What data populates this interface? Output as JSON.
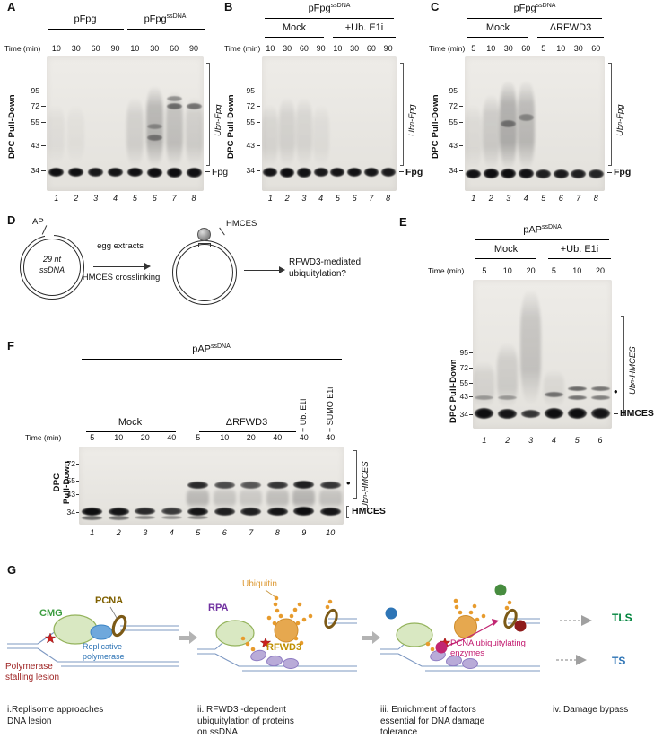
{
  "panelA": {
    "label": "A",
    "group1": {
      "base": "pFpg",
      "sup": ""
    },
    "group2": {
      "base": "pFpg",
      "sup": "ssDNA"
    },
    "time_label": "Time (min)",
    "times": [
      "10",
      "30",
      "60",
      "90",
      "10",
      "30",
      "60",
      "90"
    ],
    "pulldown": "DPC Pull-Down",
    "mw": [
      "95",
      "72",
      "55",
      "43",
      "34"
    ],
    "ub": {
      "pre": "Ub",
      "sub": "n",
      "post": "-Fpg"
    },
    "band": "Fpg",
    "lane_numbers": [
      "1",
      "2",
      "3",
      "4",
      "5",
      "6",
      "7",
      "8"
    ],
    "gel": {
      "bandW": 15,
      "lanes": [
        {
          "b": [
            [
              0.86,
              10,
              0.97
            ]
          ],
          "s": [
            0.35,
            0.8,
            0.05
          ]
        },
        {
          "b": [
            [
              0.86,
              10,
              0.97
            ]
          ],
          "s": [
            0.35,
            0.8,
            0.04
          ]
        },
        {
          "b": [
            [
              0.86,
              10,
              0.93
            ]
          ]
        },
        {
          "b": [
            [
              0.86,
              10,
              0.95
            ]
          ]
        },
        {
          "b": [
            [
              0.86,
              10,
              0.97
            ]
          ],
          "s": [
            0.3,
            0.82,
            0.13
          ]
        },
        {
          "b": [
            [
              0.86,
              11,
              0.98
            ],
            [
              0.6,
              7,
              0.4
            ],
            [
              0.52,
              6,
              0.3
            ]
          ],
          "s": [
            0.22,
            0.82,
            0.28
          ]
        },
        {
          "b": [
            [
              0.86,
              11,
              0.98
            ],
            [
              0.37,
              7,
              0.5
            ],
            [
              0.31,
              6,
              0.35
            ]
          ],
          "s": [
            0.26,
            0.82,
            0.22
          ]
        },
        {
          "b": [
            [
              0.86,
              11,
              0.97
            ],
            [
              0.37,
              7,
              0.5
            ]
          ],
          "s": [
            0.3,
            0.82,
            0.14
          ]
        }
      ]
    }
  },
  "panelB": {
    "label": "B",
    "title": {
      "base": "pFpg",
      "sup": "ssDNA"
    },
    "group1": "Mock",
    "group2": "+Ub. E1i",
    "time_label": "Time (min)",
    "times": [
      "10",
      "30",
      "60",
      "90",
      "10",
      "30",
      "60",
      "90"
    ],
    "pulldown": "DPC Pull-Down",
    "mw": [
      "95",
      "72",
      "55",
      "43",
      "34"
    ],
    "ub": {
      "pre": "Ub",
      "sub": "n",
      "post": "-Fpg"
    },
    "band": "Fpg",
    "lane_numbers": [
      "1",
      "2",
      "3",
      "4",
      "5",
      "6",
      "7",
      "8"
    ],
    "gel": {
      "bandW": 14,
      "lanes": [
        {
          "b": [
            [
              0.86,
              10,
              0.95
            ]
          ],
          "s": [
            0.35,
            0.82,
            0.1
          ]
        },
        {
          "b": [
            [
              0.86,
              11,
              0.98
            ]
          ],
          "s": [
            0.3,
            0.82,
            0.12
          ]
        },
        {
          "b": [
            [
              0.86,
              11,
              0.96
            ]
          ],
          "s": [
            0.3,
            0.82,
            0.1
          ]
        },
        {
          "b": [
            [
              0.86,
              10,
              0.93
            ]
          ],
          "s": [
            0.35,
            0.82,
            0.06
          ]
        },
        {
          "b": [
            [
              0.86,
              10,
              0.95
            ]
          ]
        },
        {
          "b": [
            [
              0.86,
              10,
              0.96
            ]
          ]
        },
        {
          "b": [
            [
              0.86,
              10,
              0.94
            ]
          ]
        },
        {
          "b": [
            [
              0.86,
              10,
              0.92
            ]
          ]
        }
      ]
    }
  },
  "panelC": {
    "label": "C",
    "title": {
      "base": "pFpg",
      "sup": "ssDNA"
    },
    "group1": "Mock",
    "group2": "ΔRFWD3",
    "time_label": "Time (min)",
    "times": [
      "5",
      "10",
      "30",
      "60",
      "5",
      "10",
      "30",
      "60"
    ],
    "pulldown": "DPC Pull-Down",
    "mw": [
      "95",
      "72",
      "55",
      "43",
      "34"
    ],
    "ub": {
      "pre": "Ub",
      "sub": "n",
      "post": "-Fpg"
    },
    "band": "Fpg",
    "lane_numbers": [
      "1",
      "2",
      "3",
      "4",
      "5",
      "6",
      "7",
      "8"
    ],
    "gel": {
      "bandW": 15,
      "lanes": [
        {
          "b": [
            [
              0.87,
              10,
              0.96
            ]
          ],
          "s": [
            0.35,
            0.84,
            0.07
          ]
        },
        {
          "b": [
            [
              0.87,
              11,
              0.98
            ]
          ],
          "s": [
            0.28,
            0.84,
            0.16
          ]
        },
        {
          "b": [
            [
              0.87,
              11,
              0.98
            ],
            [
              0.5,
              8,
              0.4
            ]
          ],
          "s": [
            0.18,
            0.84,
            0.32
          ]
        },
        {
          "b": [
            [
              0.87,
              11,
              0.96
            ],
            [
              0.45,
              8,
              0.32
            ]
          ],
          "s": [
            0.18,
            0.84,
            0.26
          ]
        },
        {
          "b": [
            [
              0.87,
              10,
              0.9
            ]
          ]
        },
        {
          "b": [
            [
              0.87,
              10,
              0.92
            ]
          ]
        },
        {
          "b": [
            [
              0.87,
              10,
              0.9
            ]
          ]
        },
        {
          "b": [
            [
              0.87,
              10,
              0.88
            ]
          ]
        }
      ]
    }
  },
  "panelD": {
    "label": "D",
    "ap": "AP",
    "plasmid_text": "29 nt\nssDNA",
    "arrow_top": "egg extracts",
    "arrow_bottom": "HMCES crosslinking",
    "hmces": "HMCES",
    "question": "RFWD3-mediated\nubiquitylation?"
  },
  "panelE": {
    "label": "E",
    "title": {
      "base": "pAP",
      "sup": "ssDNA"
    },
    "group1": "Mock",
    "group2": "+Ub. E1i",
    "time_label": "Time (min)",
    "times": [
      "5",
      "10",
      "20",
      "5",
      "10",
      "20"
    ],
    "pulldown": "DPC Pull-Down",
    "mw": [
      "95",
      "72",
      "55",
      "43",
      "34"
    ],
    "ub": {
      "pre": "Ub",
      "sub": "n",
      "post": "-HMCES"
    },
    "dot": "•",
    "band": "HMCES",
    "lane_numbers": [
      "1",
      "2",
      "3",
      "4",
      "5",
      "6"
    ],
    "gel": {
      "bandW": 19,
      "lanes": [
        {
          "b": [
            [
              0.9,
              12,
              0.98
            ],
            [
              0.79,
              5,
              0.3
            ]
          ],
          "s": [
            0.55,
            0.86,
            0.1
          ]
        },
        {
          "b": [
            [
              0.9,
              11,
              0.95
            ],
            [
              0.79,
              5,
              0.3
            ]
          ],
          "s": [
            0.42,
            0.86,
            0.14
          ]
        },
        {
          "b": [
            [
              0.9,
              9,
              0.8
            ]
          ],
          "s": [
            0.06,
            0.84,
            0.2
          ]
        },
        {
          "b": [
            [
              0.9,
              12,
              0.98
            ],
            [
              0.77,
              6,
              0.5
            ]
          ],
          "s": [
            0.6,
            0.86,
            0.07
          ]
        },
        {
          "b": [
            [
              0.9,
              12,
              0.98
            ],
            [
              0.73,
              5,
              0.55
            ],
            [
              0.79,
              5,
              0.5
            ]
          ]
        },
        {
          "b": [
            [
              0.9,
              12,
              0.95
            ],
            [
              0.73,
              5,
              0.5
            ],
            [
              0.79,
              5,
              0.45
            ]
          ]
        }
      ]
    }
  },
  "panelF": {
    "label": "F",
    "title": {
      "base": "pAP",
      "sup": "ssDNA"
    },
    "group1": "Mock",
    "group2": "ΔRFWD3",
    "rot1": "+ Ub. E1i",
    "rot2": "+ SUMO E1i",
    "time_label": "Time (min)",
    "times": [
      "5",
      "10",
      "20",
      "40",
      "5",
      "10",
      "20",
      "40",
      "40",
      "40"
    ],
    "pulldown": "DPC\nPull-Down",
    "mw": [
      "72",
      "55",
      "43",
      "34"
    ],
    "ub": {
      "pre": "Ub",
      "sub": "n",
      "post": "-HMCES"
    },
    "dot": "•",
    "band": "HMCES",
    "lane_numbers": [
      "1",
      "2",
      "3",
      "4",
      "5",
      "6",
      "7",
      "8",
      "9",
      "10"
    ],
    "gel": {
      "bandW": 21,
      "lanes": [
        {
          "b": [
            [
              0.83,
              9,
              0.98
            ],
            [
              0.91,
              5,
              0.55
            ]
          ]
        },
        {
          "b": [
            [
              0.83,
              9,
              0.95
            ],
            [
              0.91,
              5,
              0.5
            ]
          ]
        },
        {
          "b": [
            [
              0.83,
              8,
              0.85
            ],
            [
              0.91,
              4,
              0.4
            ]
          ]
        },
        {
          "b": [
            [
              0.83,
              8,
              0.78
            ],
            [
              0.91,
              4,
              0.35
            ]
          ]
        },
        {
          "b": [
            [
              0.83,
              9,
              0.95
            ],
            [
              0.91,
              4,
              0.4
            ],
            [
              0.49,
              8,
              0.85
            ]
          ],
          "s": [
            0.52,
            0.8,
            0.25
          ]
        },
        {
          "b": [
            [
              0.83,
              9,
              0.9
            ],
            [
              0.49,
              8,
              0.7
            ]
          ],
          "s": [
            0.52,
            0.8,
            0.18
          ]
        },
        {
          "b": [
            [
              0.83,
              9,
              0.9
            ],
            [
              0.49,
              8,
              0.65
            ]
          ],
          "s": [
            0.52,
            0.8,
            0.16
          ]
        },
        {
          "b": [
            [
              0.83,
              9,
              0.95
            ],
            [
              0.49,
              8,
              0.8
            ]
          ],
          "s": [
            0.52,
            0.8,
            0.22
          ]
        },
        {
          "b": [
            [
              0.83,
              10,
              0.98
            ],
            [
              0.49,
              9,
              0.9
            ]
          ],
          "s": [
            0.5,
            0.8,
            0.28
          ]
        },
        {
          "b": [
            [
              0.83,
              9,
              0.95
            ],
            [
              0.49,
              8,
              0.8
            ]
          ],
          "s": [
            0.52,
            0.8,
            0.2
          ]
        }
      ]
    }
  },
  "panelG": {
    "label": "G",
    "stage1": {
      "cmg": "CMG",
      "pcna": "PCNA",
      "pol": "Replicative\npolymerase",
      "lesion": "Polymerase\nstalling lesion"
    },
    "stage2": {
      "ubiquitin": "Ubiquitin",
      "rpa": "RPA",
      "rfwd3": "RFWD3"
    },
    "stage3": {
      "enzymes": "PCNA ubiquitylating\nenzymes"
    },
    "stage4": {
      "tls": "TLS",
      "ts": "TS"
    },
    "captions": [
      "i.Replisome approaches\nDNA lesion",
      "ii. RFWD3 -dependent\nubiquitylation of proteins\non ssDNA",
      "iii. Enrichment of factors\nessential for DNA damage\ntolerance",
      "iv. Damage bypass"
    ],
    "colors": {
      "cmg": "#3c9d40",
      "pcna": "#7f6000",
      "pol": "#2e74b5",
      "lesion": "#9c1f1f",
      "ubiquitin": "#dd9933",
      "rpa": "#7030a0",
      "rfwd3": "#bf8f00",
      "enzymes": "#c2186e",
      "tls": "#00843d",
      "ts": "#2e74b5"
    }
  }
}
